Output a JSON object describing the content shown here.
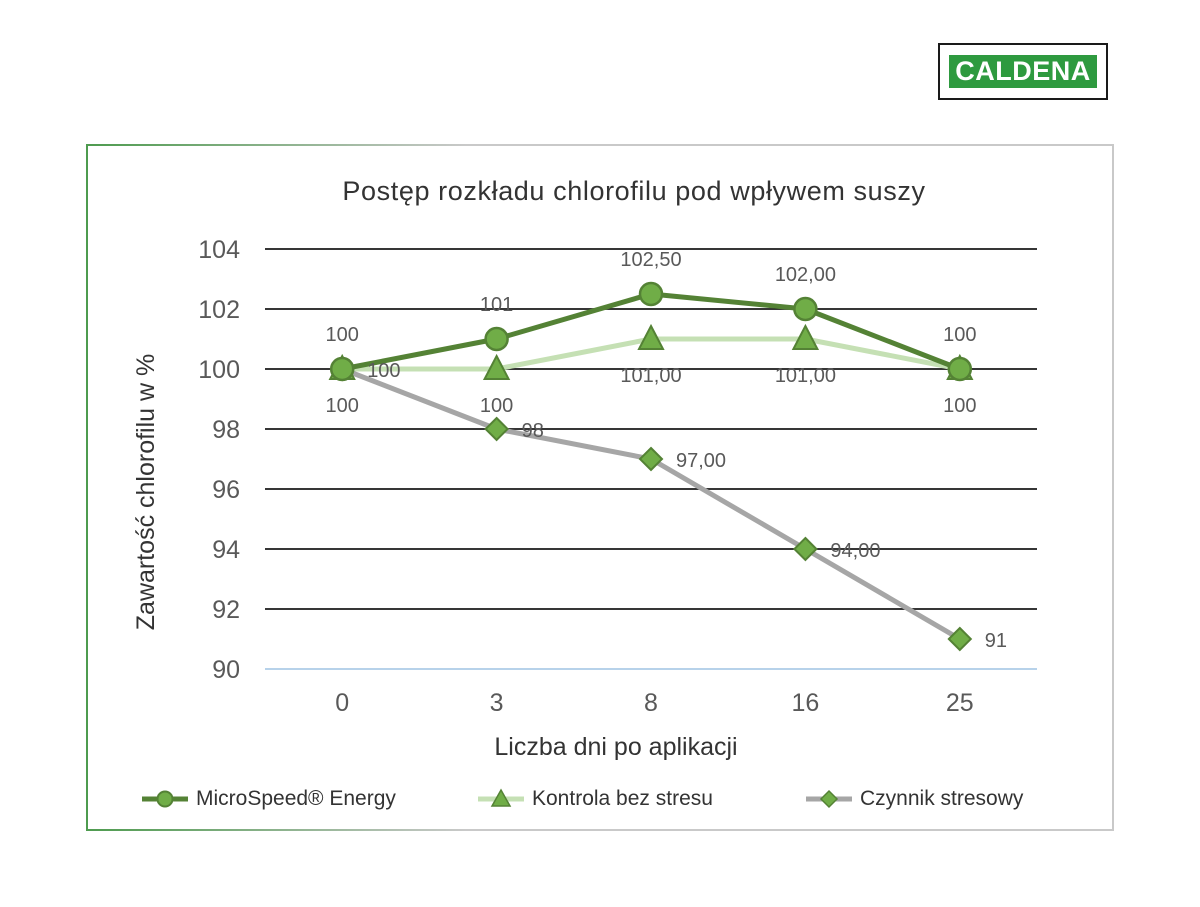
{
  "logo": {
    "text": "CALDENA"
  },
  "chart_data": {
    "type": "line",
    "title": "Postęp rozkładu chlorofilu pod wpływem suszy",
    "xlabel": "Liczba dni po aplikacji",
    "ylabel": "Zawartość chlorofilu w %",
    "categories": [
      "0",
      "3",
      "8",
      "16",
      "25"
    ],
    "ylim": [
      90,
      104
    ],
    "yticks": [
      "90",
      "92",
      "94",
      "96",
      "98",
      "100",
      "102",
      "104"
    ],
    "grid": true,
    "legend_position": "bottom",
    "series": [
      {
        "name": "MicroSpeed® Energy",
        "values": [
          100,
          101,
          102.5,
          102,
          100
        ],
        "labels": [
          "100",
          "101",
          "102,50",
          "102,00",
          "100"
        ],
        "label_position": "above",
        "marker": "circle",
        "color": "#548235",
        "fill": "#70ad47"
      },
      {
        "name": "Kontrola bez stresu",
        "values": [
          100,
          100,
          101,
          101,
          100
        ],
        "labels": [
          "100",
          "100",
          "101,00",
          "101,00",
          "100"
        ],
        "label_position": "below",
        "marker": "triangle",
        "color": "#c5e0b4",
        "fill": "#70ad47"
      },
      {
        "name": "Czynnik stresowy",
        "values": [
          100,
          98,
          97,
          94,
          91
        ],
        "labels": [
          "100",
          "98",
          "97,00",
          "94,00",
          "91"
        ],
        "label_position": "right",
        "marker": "diamond",
        "color": "#a6a6a6",
        "fill": "#70ad47"
      }
    ]
  }
}
